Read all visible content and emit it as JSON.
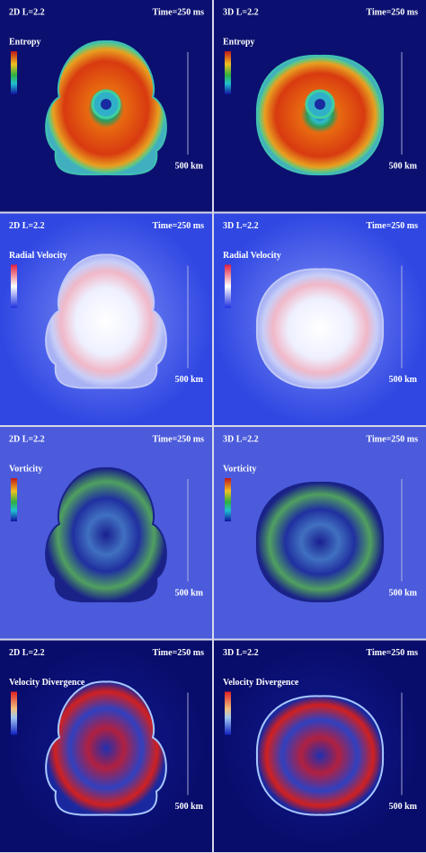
{
  "panels": [
    {
      "dimension": "2D L=2.2",
      "time": "Time=250 ms",
      "quantity": "Entropy",
      "scale": "500 km"
    },
    {
      "dimension": "3D L=2.2",
      "time": "Time=250 ms",
      "quantity": "Entropy",
      "scale": "500 km"
    },
    {
      "dimension": "2D L=2.2",
      "time": "Time=250 ms",
      "quantity": "Radial Velocity",
      "scale": "500 km"
    },
    {
      "dimension": "3D L=2.2",
      "time": "Time=250 ms",
      "quantity": "Radial Velocity",
      "scale": "500 km"
    },
    {
      "dimension": "2D L=2.2",
      "time": "Time=250 ms",
      "quantity": "Vorticity",
      "scale": "500 km"
    },
    {
      "dimension": "3D L=2.2",
      "time": "Time=250 ms",
      "quantity": "Vorticity",
      "scale": "500 km"
    },
    {
      "dimension": "2D L=2.2",
      "time": "Time=250 ms",
      "quantity": "Velocity Divergence",
      "scale": "500 km"
    },
    {
      "dimension": "3D L=2.2",
      "time": "Time=250 ms",
      "quantity": "Velocity Divergence",
      "scale": "500 km"
    }
  ]
}
